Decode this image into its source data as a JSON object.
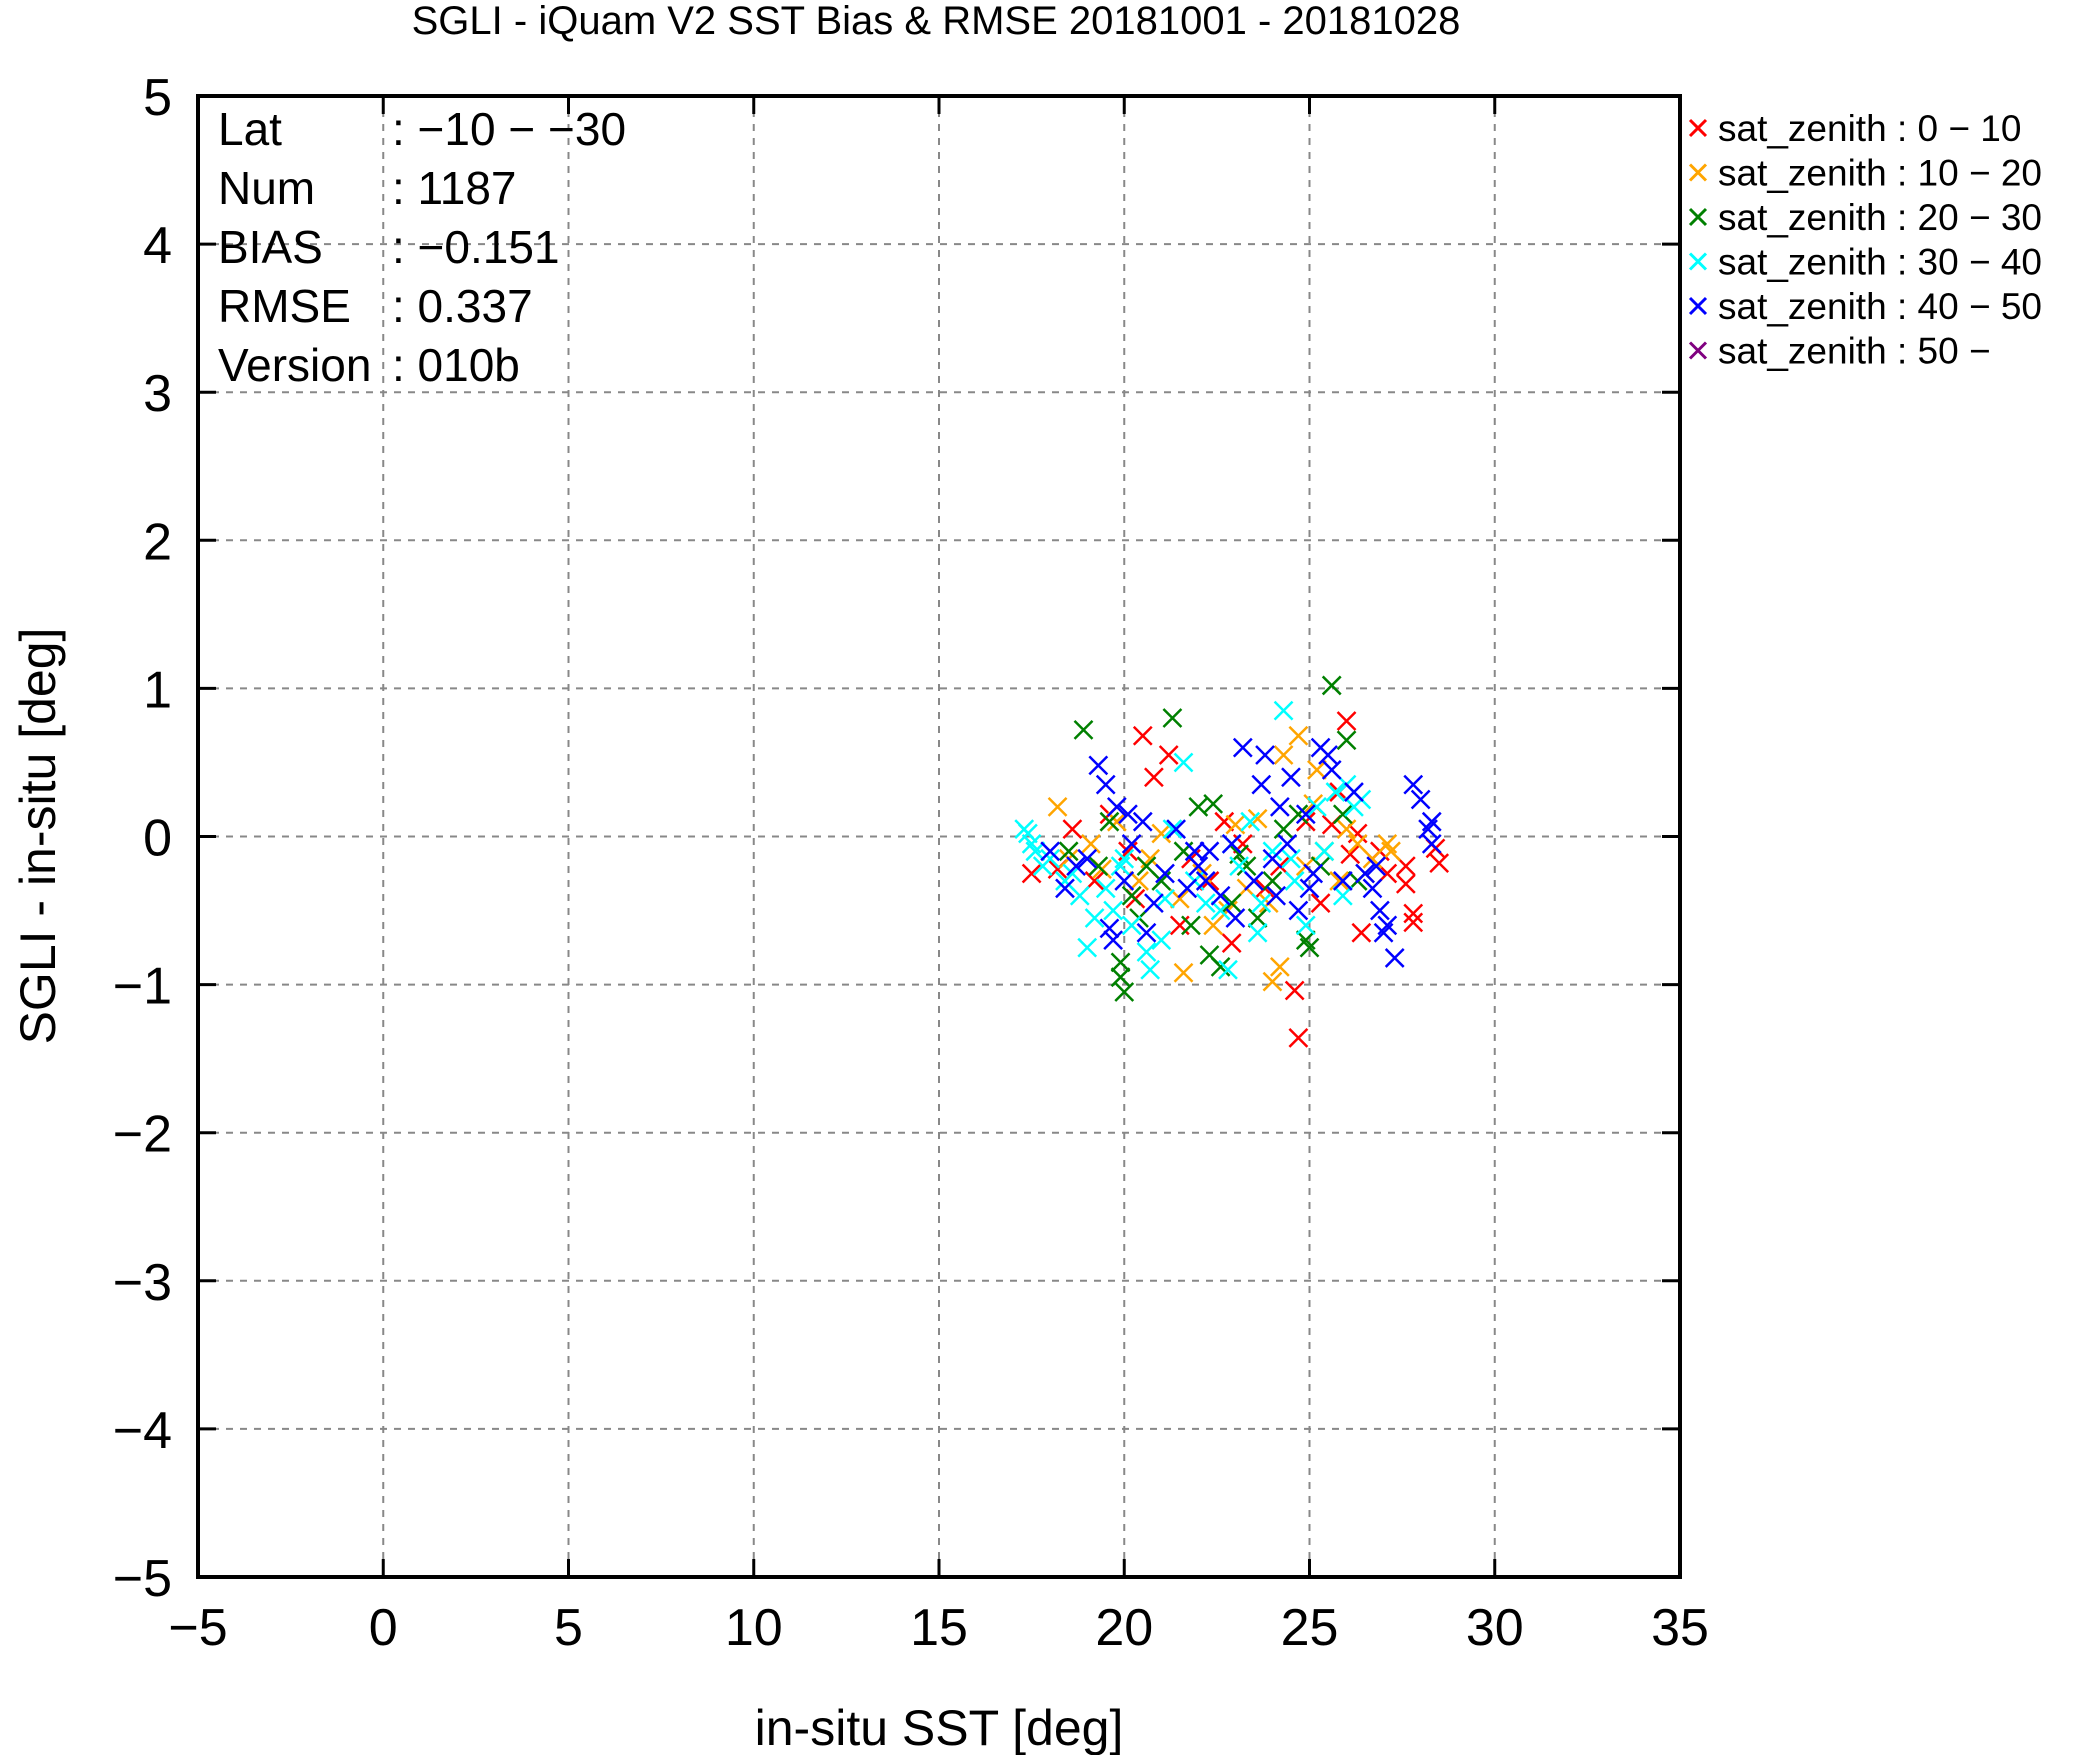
{
  "chart_data": {
    "type": "scatter",
    "title": "SGLI - iQuam V2 SST Bias & RMSE 20181001 - 20181028",
    "xlabel": "in-situ SST [deg]",
    "ylabel": "SGLI - in-situ [deg]",
    "xlim": [
      -5,
      35
    ],
    "ylim": [
      -5,
      5
    ],
    "xticks": [
      -5,
      0,
      5,
      10,
      15,
      20,
      25,
      30,
      35
    ],
    "yticks": [
      -5,
      -4,
      -3,
      -2,
      -1,
      0,
      1,
      2,
      3,
      4,
      5
    ],
    "xtick_labels": [
      "−5",
      "0",
      "5",
      "10",
      "15",
      "20",
      "25",
      "30",
      "35"
    ],
    "ytick_labels": [
      "−5",
      "−4",
      "−3",
      "−2",
      "−1",
      "0",
      "1",
      "2",
      "3",
      "4",
      "5"
    ],
    "grid": true,
    "legend_position": "outside-right",
    "marker": "x",
    "stats": [
      {
        "label": "Lat",
        "value": ": −10 − −30"
      },
      {
        "label": "Num",
        "value": ": 1187"
      },
      {
        "label": "BIAS",
        "value": ": −0.151"
      },
      {
        "label": "RMSE",
        "value": ": 0.337"
      },
      {
        "label": "Version",
        "value": ": 010b"
      }
    ],
    "series": [
      {
        "name": "sat_zenith :  0 − 10",
        "color": "#ff0000",
        "points": [
          [
            18.2,
            -0.22
          ],
          [
            18.6,
            0.05
          ],
          [
            19.6,
            0.15
          ],
          [
            20.1,
            -0.1
          ],
          [
            20.5,
            0.68
          ],
          [
            20.8,
            0.4
          ],
          [
            21.2,
            0.55
          ],
          [
            21.8,
            -0.15
          ],
          [
            22.3,
            -0.3
          ],
          [
            22.9,
            -0.72
          ],
          [
            23.2,
            -0.05
          ],
          [
            24.6,
            -1.04
          ],
          [
            24.7,
            -1.36
          ],
          [
            24.9,
            0.1
          ],
          [
            25.3,
            -0.45
          ],
          [
            25.8,
            0.3
          ],
          [
            26.0,
            0.78
          ],
          [
            26.3,
            0.02
          ],
          [
            26.4,
            -0.65
          ],
          [
            26.9,
            -0.1
          ],
          [
            27.1,
            -0.25
          ],
          [
            27.6,
            -0.32
          ],
          [
            27.6,
            -0.2
          ],
          [
            27.8,
            -0.52
          ],
          [
            27.8,
            -0.58
          ],
          [
            28.4,
            -0.08
          ],
          [
            28.5,
            -0.18
          ],
          [
            17.5,
            -0.25
          ],
          [
            19.2,
            -0.3
          ],
          [
            21.5,
            -0.6
          ],
          [
            23.8,
            -0.35
          ],
          [
            25.6,
            0.08
          ],
          [
            20.3,
            -0.42
          ],
          [
            22.7,
            0.1
          ],
          [
            24.2,
            -0.2
          ],
          [
            26.1,
            -0.12
          ]
        ]
      },
      {
        "name": "sat_zenith : 10 − 20",
        "color": "#ffa500",
        "points": [
          [
            18.2,
            0.2
          ],
          [
            18.5,
            -0.15
          ],
          [
            19.1,
            -0.05
          ],
          [
            19.8,
            0.1
          ],
          [
            20.4,
            -0.3
          ],
          [
            21.0,
            0.02
          ],
          [
            21.5,
            -0.42
          ],
          [
            21.6,
            -0.92
          ],
          [
            22.1,
            -0.25
          ],
          [
            22.4,
            -0.6
          ],
          [
            23.0,
            0.08
          ],
          [
            23.3,
            -0.35
          ],
          [
            23.6,
            0.12
          ],
          [
            24.0,
            -0.98
          ],
          [
            24.2,
            -0.88
          ],
          [
            24.3,
            0.55
          ],
          [
            24.7,
            0.68
          ],
          [
            24.9,
            -0.2
          ],
          [
            25.1,
            0.22
          ],
          [
            25.4,
            -0.1
          ],
          [
            25.8,
            -0.3
          ],
          [
            26.0,
            0.05
          ],
          [
            26.3,
            -0.05
          ],
          [
            26.7,
            -0.15
          ],
          [
            27.1,
            -0.05
          ],
          [
            27.2,
            -0.1
          ],
          [
            20.7,
            -0.15
          ],
          [
            22.8,
            -0.5
          ],
          [
            25.2,
            0.45
          ],
          [
            26.5,
            -0.25
          ],
          [
            19.4,
            -0.22
          ],
          [
            23.9,
            -0.45
          ]
        ]
      },
      {
        "name": "sat_zenith : 20 − 30",
        "color": "#008000",
        "points": [
          [
            18.5,
            -0.1
          ],
          [
            18.9,
            0.72
          ],
          [
            19.3,
            -0.2
          ],
          [
            19.6,
            0.1
          ],
          [
            19.9,
            -0.85
          ],
          [
            20.0,
            -1.05
          ],
          [
            19.9,
            -0.95
          ],
          [
            20.2,
            -0.4
          ],
          [
            20.6,
            -0.2
          ],
          [
            21.0,
            -0.3
          ],
          [
            21.3,
            0.8
          ],
          [
            21.6,
            -0.1
          ],
          [
            22.0,
            0.2
          ],
          [
            22.3,
            -0.8
          ],
          [
            22.6,
            -0.88
          ],
          [
            22.9,
            -0.45
          ],
          [
            23.3,
            -0.2
          ],
          [
            23.6,
            -0.55
          ],
          [
            24.0,
            -0.3
          ],
          [
            24.3,
            0.05
          ],
          [
            24.7,
            0.15
          ],
          [
            24.9,
            -0.7
          ],
          [
            25.0,
            -0.75
          ],
          [
            25.3,
            -0.2
          ],
          [
            25.6,
            1.02
          ],
          [
            25.9,
            0.15
          ],
          [
            26.0,
            0.65
          ],
          [
            26.3,
            -0.3
          ],
          [
            21.8,
            -0.6
          ],
          [
            23.1,
            -0.12
          ],
          [
            20.4,
            -0.55
          ],
          [
            22.4,
            0.22
          ]
        ]
      },
      {
        "name": "sat_zenith : 30 − 40",
        "color": "#00ffff",
        "points": [
          [
            17.3,
            0.05
          ],
          [
            17.5,
            -0.05
          ],
          [
            17.4,
            0.02
          ],
          [
            17.6,
            -0.1
          ],
          [
            18.0,
            -0.15
          ],
          [
            18.4,
            -0.3
          ],
          [
            18.8,
            -0.4
          ],
          [
            19.0,
            -0.75
          ],
          [
            19.2,
            -0.55
          ],
          [
            19.5,
            -0.35
          ],
          [
            19.9,
            -0.2
          ],
          [
            20.2,
            -0.6
          ],
          [
            20.6,
            -0.78
          ],
          [
            20.7,
            -0.9
          ],
          [
            21.0,
            -0.7
          ],
          [
            21.3,
            0.05
          ],
          [
            21.6,
            0.5
          ],
          [
            21.9,
            -0.3
          ],
          [
            22.2,
            -0.45
          ],
          [
            22.6,
            -0.5
          ],
          [
            22.8,
            -0.9
          ],
          [
            23.1,
            -0.2
          ],
          [
            23.4,
            0.1
          ],
          [
            23.7,
            -0.45
          ],
          [
            24.0,
            -0.1
          ],
          [
            24.3,
            0.85
          ],
          [
            24.6,
            -0.3
          ],
          [
            24.9,
            -0.6
          ],
          [
            25.2,
            0.2
          ],
          [
            25.4,
            -0.1
          ],
          [
            25.7,
            0.3
          ],
          [
            26.0,
            0.35
          ],
          [
            26.2,
            0.2
          ],
          [
            17.8,
            -0.2
          ],
          [
            19.7,
            -0.5
          ],
          [
            21.1,
            -0.42
          ],
          [
            22.9,
            -0.05
          ],
          [
            24.5,
            -0.15
          ],
          [
            25.9,
            -0.4
          ],
          [
            26.4,
            0.25
          ],
          [
            20.0,
            -0.15
          ],
          [
            23.6,
            -0.65
          ],
          [
            18.6,
            -0.25
          ]
        ]
      },
      {
        "name": "sat_zenith : 40 − 50",
        "color": "#0000ff",
        "points": [
          [
            18.0,
            -0.1
          ],
          [
            18.4,
            -0.35
          ],
          [
            18.7,
            -0.2
          ],
          [
            19.0,
            -0.15
          ],
          [
            19.3,
            0.48
          ],
          [
            19.5,
            0.35
          ],
          [
            19.6,
            -0.62
          ],
          [
            19.8,
            0.2
          ],
          [
            20.0,
            -0.3
          ],
          [
            20.2,
            -0.05
          ],
          [
            20.5,
            0.1
          ],
          [
            20.8,
            -0.45
          ],
          [
            21.1,
            -0.25
          ],
          [
            21.4,
            0.05
          ],
          [
            21.7,
            -0.35
          ],
          [
            22.0,
            -0.2
          ],
          [
            22.3,
            -0.1
          ],
          [
            22.6,
            -0.4
          ],
          [
            22.9,
            -0.05
          ],
          [
            23.2,
            0.6
          ],
          [
            23.5,
            -0.3
          ],
          [
            23.7,
            0.35
          ],
          [
            23.8,
            0.55
          ],
          [
            24.0,
            -0.15
          ],
          [
            24.2,
            0.2
          ],
          [
            24.5,
            0.4
          ],
          [
            24.7,
            -0.5
          ],
          [
            24.9,
            0.15
          ],
          [
            25.1,
            -0.25
          ],
          [
            25.3,
            0.6
          ],
          [
            25.5,
            0.55
          ],
          [
            25.6,
            0.45
          ],
          [
            25.9,
            -0.3
          ],
          [
            26.2,
            0.3
          ],
          [
            26.5,
            -0.25
          ],
          [
            26.7,
            -0.35
          ],
          [
            26.9,
            -0.5
          ],
          [
            27.1,
            -0.6
          ],
          [
            27.3,
            -0.82
          ],
          [
            27.8,
            0.35
          ],
          [
            28.0,
            0.25
          ],
          [
            28.2,
            0.05
          ],
          [
            28.3,
            -0.05
          ],
          [
            28.3,
            0.1
          ],
          [
            19.7,
            -0.7
          ],
          [
            20.6,
            -0.65
          ],
          [
            21.9,
            -0.1
          ],
          [
            23.0,
            -0.55
          ],
          [
            24.4,
            -0.05
          ],
          [
            25.0,
            -0.35
          ],
          [
            26.8,
            -0.2
          ],
          [
            27.0,
            -0.65
          ],
          [
            20.1,
            0.15
          ],
          [
            22.2,
            -0.3
          ],
          [
            24.1,
            -0.4
          ]
        ]
      },
      {
        "name": "sat_zenith : 50 −",
        "color": "#800080",
        "points": []
      }
    ]
  }
}
